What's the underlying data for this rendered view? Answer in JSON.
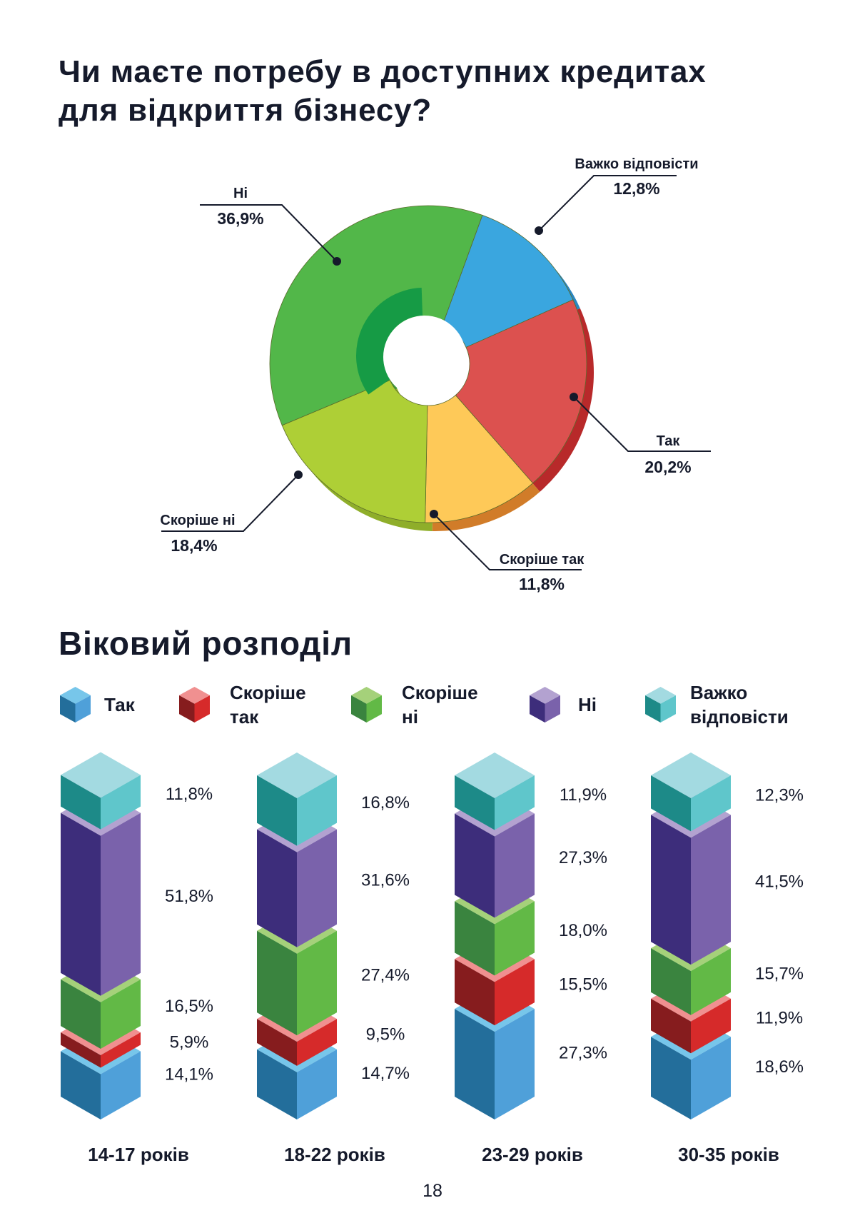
{
  "title_line1": "Чи маєте потребу в доступних кредитах",
  "title_line2": "для відкриття бізнесу?",
  "age_title": "Віковий розподіл",
  "page_number": "18",
  "chart_data": [
    {
      "type": "pie",
      "variant": "donut-3d",
      "title": "Чи маєте потребу в доступних кредитах для відкриття бізнесу?",
      "slices": [
        {
          "label": "Важко відповісти",
          "value": 12.8,
          "value_label": "12,8%",
          "color": "#3aa6df"
        },
        {
          "label": "Так",
          "value": 20.2,
          "value_label": "20,2%",
          "color": "#dc514f"
        },
        {
          "label": "Скоріше так",
          "value": 11.8,
          "value_label": "11,8%",
          "color": "#fec958"
        },
        {
          "label": "Скоріше ні",
          "value": 18.4,
          "value_label": "18,4%",
          "color": "#aecf36"
        },
        {
          "label": "Ні",
          "value": 36.9,
          "value_label": "36,9%",
          "color": "#52b749"
        }
      ]
    },
    {
      "type": "bar",
      "variant": "stacked-3d",
      "title": "Віковий розподіл",
      "categories": [
        "14-17 років",
        "18-22 років",
        "23-29 років",
        "30-35 років"
      ],
      "legend_position": "top",
      "series": [
        {
          "name": "Так",
          "values": [
            14.1,
            14.7,
            27.3,
            18.6
          ],
          "labels": [
            "14,1%",
            "14,7%",
            "27,3%",
            "18,6%"
          ],
          "colors": {
            "left": "#236e9b",
            "right": "#4fa0d9",
            "top": "#77c6ea"
          }
        },
        {
          "name": "Скоріше так",
          "values": [
            5.9,
            9.5,
            15.5,
            11.9
          ],
          "labels": [
            "5,9%",
            "9,5%",
            "15,5%",
            "11,9%"
          ],
          "colors": {
            "left": "#861c1e",
            "right": "#d62a2a",
            "top": "#f09090"
          }
        },
        {
          "name": "Скоріше ні",
          "values": [
            16.5,
            27.4,
            18.0,
            15.7
          ],
          "labels": [
            "16,5%",
            "27,4%",
            "18,0%",
            "15,7%"
          ],
          "colors": {
            "left": "#3a843f",
            "right": "#62b946",
            "top": "#a5d17a"
          }
        },
        {
          "name": "Ні",
          "values": [
            51.8,
            31.6,
            27.3,
            41.5
          ],
          "labels": [
            "51,8%",
            "31,6%",
            "27,3%",
            "41,5%"
          ],
          "colors": {
            "left": "#3d2d7b",
            "right": "#7a62ab",
            "top": "#b3a2d0"
          }
        },
        {
          "name": "Важко відповісти",
          "values": [
            11.8,
            16.8,
            11.9,
            12.3
          ],
          "labels": [
            "11,8%",
            "16,8%",
            "11,9%",
            "12,3%"
          ],
          "colors": {
            "left": "#1d8a88",
            "right": "#5fc6cb",
            "top": "#a3dae1"
          }
        }
      ]
    }
  ]
}
